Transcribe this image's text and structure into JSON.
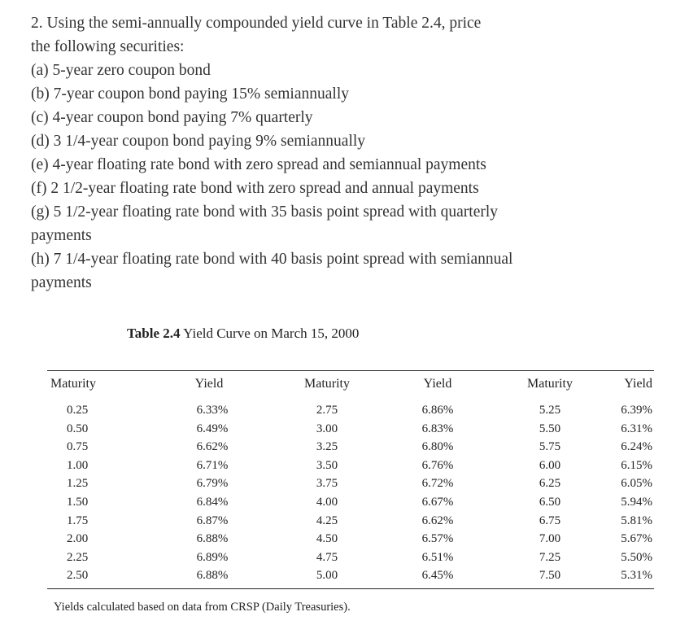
{
  "problem": {
    "lines": [
      "2. Using the semi-annually compounded yield curve in Table 2.4, price",
      "the following securities:",
      "(a) 5-year zero coupon bond",
      "(b) 7-year coupon bond paying 15% semiannually",
      "(c) 4-year coupon bond paying 7% quarterly",
      "(d) 3 1/4-year coupon bond paying 9% semiannually",
      "(e) 4-year floating rate bond with zero spread and semiannual payments",
      "(f) 2 1/2-year floating rate bond with zero spread and annual payments",
      "(g) 5 1/2-year floating rate bond with 35 basis point spread with quarterly",
      "payments",
      "(h) 7 1/4-year floating rate bond with 40 basis point spread with semiannual",
      "payments"
    ]
  },
  "table": {
    "caption_label": "Table 2.4",
    "caption_title": "Yield Curve on March 15, 2000",
    "headers": [
      "Maturity",
      "Yield",
      "Maturity",
      "Yield",
      "Maturity",
      "Yield"
    ],
    "rows": [
      [
        "0.25",
        "6.33%",
        "2.75",
        "6.86%",
        "5.25",
        "6.39%"
      ],
      [
        "0.50",
        "6.49%",
        "3.00",
        "6.83%",
        "5.50",
        "6.31%"
      ],
      [
        "0.75",
        "6.62%",
        "3.25",
        "6.80%",
        "5.75",
        "6.24%"
      ],
      [
        "1.00",
        "6.71%",
        "3.50",
        "6.76%",
        "6.00",
        "6.15%"
      ],
      [
        "1.25",
        "6.79%",
        "3.75",
        "6.72%",
        "6.25",
        "6.05%"
      ],
      [
        "1.50",
        "6.84%",
        "4.00",
        "6.67%",
        "6.50",
        "5.94%"
      ],
      [
        "1.75",
        "6.87%",
        "4.25",
        "6.62%",
        "6.75",
        "5.81%"
      ],
      [
        "2.00",
        "6.88%",
        "4.50",
        "6.57%",
        "7.00",
        "5.67%"
      ],
      [
        "2.25",
        "6.89%",
        "4.75",
        "6.51%",
        "7.25",
        "5.50%"
      ],
      [
        "2.50",
        "6.88%",
        "5.00",
        "6.45%",
        "7.50",
        "5.31%"
      ]
    ],
    "note": "Yields calculated based on data from CRSP (Daily Treasuries)."
  }
}
